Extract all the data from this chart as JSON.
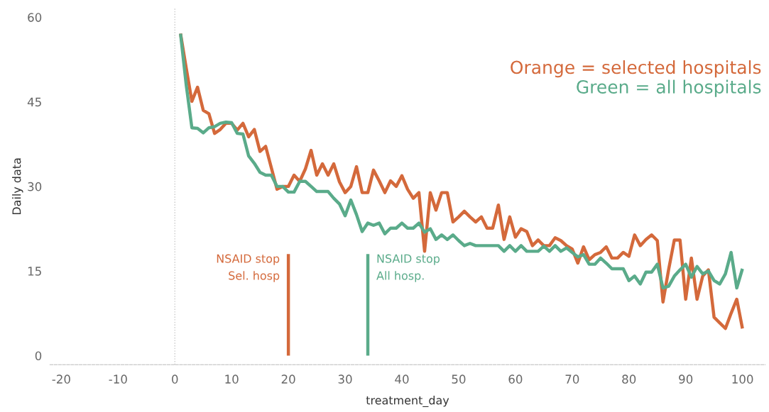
{
  "chart_data": {
    "type": "line",
    "xlabel": "treatment_day",
    "ylabel": "Daily data",
    "xlim": [
      -22,
      104
    ],
    "ylim": [
      -1.6,
      61.6
    ],
    "xticks": [
      -20,
      -10,
      0,
      10,
      20,
      30,
      40,
      50,
      60,
      70,
      80,
      90,
      100
    ],
    "yticks": [
      0,
      15,
      30,
      45,
      60
    ],
    "grid": false,
    "line_style": "solid",
    "annotations": [
      "Orange = selected hospitals",
      "Green = all hospitals"
    ],
    "ref_lines": [
      {
        "axis": "x",
        "value": 0,
        "color": "#c8c8c8",
        "line_style": "dotted"
      }
    ],
    "series": [
      {
        "color": "#d4693b",
        "x": [
          1,
          2,
          3,
          4,
          5,
          6,
          7,
          8,
          9,
          10,
          11,
          12,
          13,
          14,
          15,
          16,
          17,
          18,
          19,
          20,
          21,
          22,
          23,
          24,
          25,
          26,
          27,
          28,
          29,
          30,
          31,
          32,
          33,
          34,
          35,
          36,
          37,
          38,
          39,
          40,
          41,
          42,
          43,
          44,
          45,
          46,
          47,
          48,
          49,
          50,
          51,
          52,
          53,
          54,
          55,
          56,
          57,
          58,
          59,
          60,
          61,
          62,
          63,
          64,
          65,
          66,
          67,
          68,
          69,
          70,
          71,
          72,
          73,
          74,
          75,
          76,
          77,
          78,
          79,
          80,
          81,
          82,
          83,
          84,
          85,
          86,
          87,
          88,
          89,
          90,
          91,
          92,
          93,
          94,
          95,
          96,
          97,
          98,
          99,
          100
        ],
        "values": [
          57.1,
          51,
          45.1,
          47.6,
          43.5,
          42.9,
          39.4,
          40.1,
          41.2,
          41.2,
          40,
          41.2,
          38.8,
          40.1,
          36.2,
          37.1,
          33.3,
          29.5,
          30,
          30,
          32,
          30.9,
          33.1,
          36.4,
          32,
          34,
          32,
          34,
          30.8,
          28.9,
          30,
          33.5,
          28.9,
          28.9,
          32.9,
          31,
          28.9,
          31,
          30,
          31.9,
          29.5,
          27.9,
          28.9,
          18.5,
          28.9,
          25.8,
          28.9,
          28.9,
          23.7,
          24.6,
          25.6,
          24.6,
          23.7,
          24.6,
          22.6,
          22.6,
          26.7,
          20.6,
          24.6,
          21,
          22.5,
          22,
          19.5,
          20.5,
          19.5,
          19.5,
          20.9,
          20.4,
          19.5,
          18.9,
          16.4,
          19.3,
          17,
          17.9,
          18.3,
          19.3,
          17.3,
          17.3,
          18.3,
          17.6,
          21.4,
          19.5,
          20.6,
          21.4,
          20.4,
          9.5,
          15.3,
          20.5,
          20.5,
          10,
          17.3,
          10,
          14.1,
          15.2,
          6.8,
          5.8,
          4.8,
          7.5,
          10,
          4.8
        ]
      },
      {
        "color": "#5aab8a",
        "x": [
          1,
          2,
          3,
          4,
          5,
          6,
          7,
          8,
          9,
          10,
          11,
          12,
          13,
          14,
          15,
          16,
          17,
          18,
          19,
          20,
          21,
          22,
          23,
          24,
          25,
          26,
          27,
          28,
          29,
          30,
          31,
          32,
          33,
          34,
          35,
          36,
          37,
          38,
          39,
          40,
          41,
          42,
          43,
          44,
          45,
          46,
          47,
          48,
          49,
          50,
          51,
          52,
          53,
          54,
          55,
          56,
          57,
          58,
          59,
          60,
          61,
          62,
          63,
          64,
          65,
          66,
          67,
          68,
          69,
          70,
          71,
          72,
          73,
          74,
          75,
          76,
          77,
          78,
          79,
          80,
          81,
          82,
          83,
          84,
          85,
          86,
          87,
          88,
          89,
          90,
          91,
          92,
          93,
          94,
          95,
          96,
          97,
          98,
          99,
          100
        ],
        "values": [
          57.1,
          48,
          40.4,
          40.3,
          39.5,
          40.4,
          40.6,
          41.2,
          41.4,
          41.3,
          39.4,
          39.3,
          35.4,
          34.1,
          32.5,
          32,
          32,
          30,
          30,
          29,
          29,
          30.9,
          30.9,
          30,
          29.1,
          29.1,
          29.1,
          27.9,
          26.9,
          24.8,
          27.6,
          25,
          22,
          23.5,
          23.1,
          23.5,
          21.6,
          22.6,
          22.6,
          23.5,
          22.6,
          22.6,
          23.5,
          21.9,
          22.5,
          20.6,
          21.4,
          20.6,
          21.4,
          20.4,
          19.5,
          19.9,
          19.5,
          19.5,
          19.5,
          19.5,
          19.5,
          18.5,
          19.5,
          18.5,
          19.5,
          18.5,
          18.5,
          18.5,
          19.4,
          18.5,
          19.5,
          18.5,
          19.1,
          18.3,
          17.5,
          17.9,
          16.2,
          16.2,
          17.3,
          16.4,
          15.4,
          15.4,
          15.4,
          13.3,
          14.1,
          12.7,
          14.8,
          14.8,
          16.2,
          12,
          12.3,
          14.1,
          15.2,
          16.2,
          13.9,
          15.8,
          14.5,
          15,
          13.3,
          12.7,
          14.5,
          18.3,
          12,
          15.4
        ]
      },
      {
        "name": "NSAID stop\nSel. hosp",
        "color": "#d4693b",
        "x": [
          20,
          20
        ],
        "values": [
          0,
          18
        ]
      },
      {
        "name": "NSAID stop\nAll hosp.",
        "color": "#5aab8a",
        "x": [
          34,
          34
        ],
        "values": [
          0,
          18
        ]
      }
    ]
  }
}
